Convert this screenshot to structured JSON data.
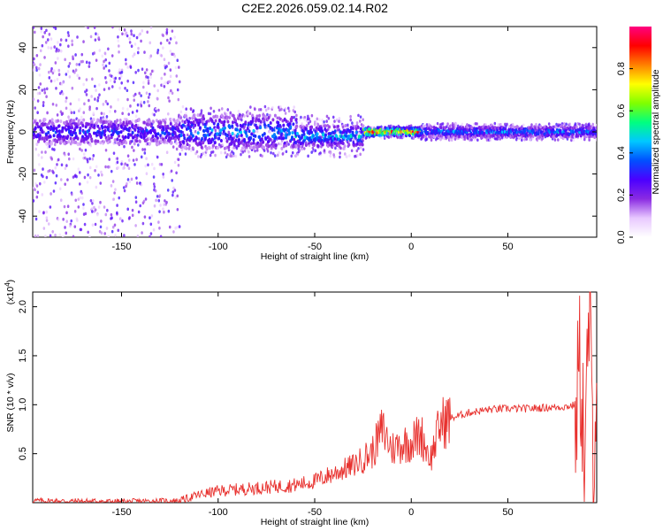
{
  "title": "C2E2.2026.059.02.14.R02",
  "chart_data": [
    {
      "type": "heatmap",
      "name": "spectrogram",
      "xlabel": "Height of straight line (km)",
      "ylabel": "Frequency (Hz)",
      "xlim": [
        -196,
        96
      ],
      "ylim": [
        -50,
        50
      ],
      "xticks": [
        -150,
        -100,
        -50,
        0,
        50
      ],
      "yticks": [
        -40,
        -20,
        0,
        20,
        40
      ],
      "colorbar": {
        "label": "Normalized spectral amplitude",
        "range": [
          0,
          1
        ],
        "ticks": [
          "0.0",
          "0.2",
          "0.4",
          "0.6",
          "0.8"
        ],
        "tick_values": [
          0,
          0.2,
          0.4,
          0.6,
          0.8
        ],
        "colormap": [
          "#ffffff",
          "#e8c8ff",
          "#8a2be2",
          "#4b00ff",
          "#0050ff",
          "#00c8ff",
          "#00ff80",
          "#80ff00",
          "#ffff00",
          "#ff8000",
          "#ff0000",
          "#ff0080"
        ]
      },
      "bands": [
        {
          "x_range": [
            -196,
            -120
          ],
          "center_hz": 0,
          "scatter_half_width_hz": 50,
          "core_half_width_hz": 6,
          "peak_amplitude": 0.4,
          "description": "widely scattered noise"
        },
        {
          "x_range": [
            -120,
            -60
          ],
          "center_hz": 0,
          "scatter_half_width_hz": 12,
          "core_half_width_hz": 8,
          "peak_amplitude": 0.5
        },
        {
          "x_range": [
            -60,
            -25
          ],
          "center_hz": -2,
          "scatter_half_width_hz": 10,
          "core_half_width_hz": 5,
          "peak_amplitude": 0.55
        },
        {
          "x_range": [
            -25,
            5
          ],
          "center_hz": 0,
          "scatter_half_width_hz": 3,
          "core_half_width_hz": 2,
          "peak_amplitude": 1.0
        },
        {
          "x_range": [
            5,
            96
          ],
          "center_hz": 0,
          "scatter_half_width_hz": 4,
          "core_half_width_hz": 2.5,
          "peak_amplitude": 0.5
        }
      ]
    },
    {
      "type": "line",
      "name": "snr",
      "xlabel": "Height of straight line (km)",
      "ylabel": "SNR (10 * v/v)",
      "scale_label": "(x10",
      "scale_exponent": "4",
      "scale_close": ")",
      "xlim": [
        -196,
        96
      ],
      "ylim": [
        0,
        2.15
      ],
      "xticks": [
        -150,
        -100,
        -50,
        0,
        50
      ],
      "yticks": [
        0.5,
        1.0,
        1.5,
        2.0
      ],
      "ytick_labels": [
        "0.5",
        "1.0",
        "1.5",
        "2.0"
      ],
      "color": "#e8312e",
      "series": [
        {
          "name": "SNR",
          "x": [
            -196,
            -150,
            -120,
            -110,
            -100,
            -80,
            -60,
            -50,
            -40,
            -30,
            -20,
            -15,
            -10,
            -5,
            0,
            5,
            10,
            15,
            20,
            30,
            40,
            50,
            60,
            70,
            80,
            85,
            88,
            90,
            92,
            94,
            96
          ],
          "y": [
            0.02,
            0.01,
            0.02,
            0.08,
            0.12,
            0.15,
            0.18,
            0.22,
            0.3,
            0.38,
            0.52,
            0.75,
            0.55,
            0.6,
            0.62,
            0.7,
            0.45,
            0.8,
            0.86,
            0.92,
            0.95,
            0.96,
            0.96,
            0.97,
            0.98,
            1.0,
            1.4,
            0.2,
            2.0,
            0.5,
            1.4
          ]
        }
      ]
    }
  ]
}
